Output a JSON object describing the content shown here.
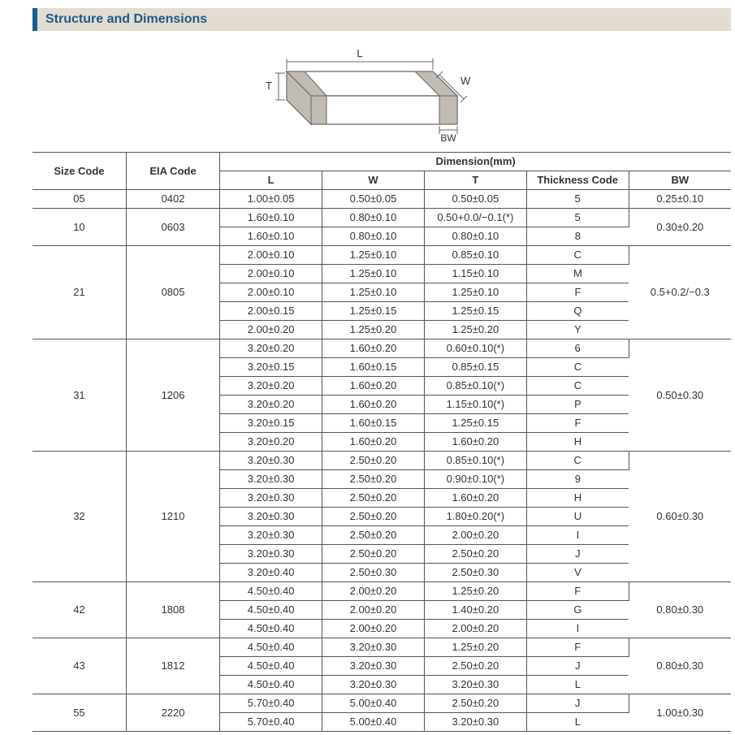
{
  "banner": {
    "title": "Structure and Dimensions"
  },
  "colors": {
    "banner_bg": "#e2dcd1",
    "accent": "#1e5a8f",
    "border": "#555555",
    "text": "#333333",
    "diagram_face": "#ffffff",
    "diagram_edge": "#686663",
    "bw_fill": "#c1bcb3"
  },
  "diagram_labels": {
    "L": "L",
    "W": "W",
    "T": "T",
    "BW": "BW"
  },
  "table": {
    "headers": {
      "size_code": "Size Code",
      "eia_code": "EIA Code",
      "dimension_group": "Dimension(mm)",
      "L": "L",
      "W": "W",
      "T": "T",
      "thickness_code": "Thickness Code",
      "BW": "BW"
    },
    "groups": [
      {
        "size_code": "05",
        "eia_code": "0402",
        "bw": "0.25±0.10",
        "rows": [
          {
            "L": "1.00±0.05",
            "W": "0.50±0.05",
            "T": "0.50±0.05",
            "tc": "5"
          }
        ]
      },
      {
        "size_code": "10",
        "eia_code": "0603",
        "bw": "0.30±0.20",
        "rows": [
          {
            "L": "1.60±0.10",
            "W": "0.80±0.10",
            "T": "0.50+0.0/−0.1(*)",
            "tc": "5"
          },
          {
            "L": "1.60±0.10",
            "W": "0.80±0.10",
            "T": "0.80±0.10",
            "tc": "8"
          }
        ]
      },
      {
        "size_code": "21",
        "eia_code": "0805",
        "bw": "0.5+0.2/−0.3",
        "rows": [
          {
            "L": "2.00±0.10",
            "W": "1.25±0.10",
            "T": "0.85±0.10",
            "tc": "C"
          },
          {
            "L": "2.00±0.10",
            "W": "1.25±0.10",
            "T": "1.15±0.10",
            "tc": "M"
          },
          {
            "L": "2.00±0.10",
            "W": "1.25±0.10",
            "T": "1.25±0.10",
            "tc": "F"
          },
          {
            "L": "2.00±0.15",
            "W": "1.25±0.15",
            "T": "1.25±0.15",
            "tc": "Q"
          },
          {
            "L": "2.00±0.20",
            "W": "1.25±0.20",
            "T": "1.25±0.20",
            "tc": "Y"
          }
        ]
      },
      {
        "size_code": "31",
        "eia_code": "1206",
        "bw": "0.50±0.30",
        "rows": [
          {
            "L": "3.20±0.20",
            "W": "1.60±0.20",
            "T": "0.60±0.10(*)",
            "tc": "6"
          },
          {
            "L": "3.20±0.15",
            "W": "1.60±0.15",
            "T": "0.85±0.15",
            "tc": "C"
          },
          {
            "L": "3.20±0.20",
            "W": "1.60±0.20",
            "T": "0.85±0.10(*)",
            "tc": "C"
          },
          {
            "L": "3.20±0.20",
            "W": "1.60±0.20",
            "T": "1.15±0.10(*)",
            "tc": "P"
          },
          {
            "L": "3.20±0.15",
            "W": "1.60±0.15",
            "T": "1.25±0.15",
            "tc": "F"
          },
          {
            "L": "3.20±0.20",
            "W": "1.60±0.20",
            "T": "1.60±0.20",
            "tc": "H"
          }
        ]
      },
      {
        "size_code": "32",
        "eia_code": "1210",
        "bw": "0.60±0.30",
        "rows": [
          {
            "L": "3.20±0.30",
            "W": "2.50±0.20",
            "T": "0.85±0.10(*)",
            "tc": "C"
          },
          {
            "L": "3.20±0.30",
            "W": "2.50±0.20",
            "T": "0.90±0.10(*)",
            "tc": "9"
          },
          {
            "L": "3.20±0.30",
            "W": "2.50±0.20",
            "T": "1.60±0.20",
            "tc": "H"
          },
          {
            "L": "3.20±0.30",
            "W": "2.50±0.20",
            "T": "1.80±0.20(*)",
            "tc": "U"
          },
          {
            "L": "3.20±0.30",
            "W": "2.50±0.20",
            "T": "2.00±0.20",
            "tc": "I"
          },
          {
            "L": "3.20±0.30",
            "W": "2.50±0.20",
            "T": "2.50±0.20",
            "tc": "J"
          },
          {
            "L": "3.20±0.40",
            "W": "2.50±0.30",
            "T": "2.50±0.30",
            "tc": "V"
          }
        ]
      },
      {
        "size_code": "42",
        "eia_code": "1808",
        "bw": "0.80±0.30",
        "rows": [
          {
            "L": "4.50±0.40",
            "W": "2.00±0.20",
            "T": "1.25±0.20",
            "tc": "F"
          },
          {
            "L": "4.50±0.40",
            "W": "2.00±0.20",
            "T": "1.40±0.20",
            "tc": "G"
          },
          {
            "L": "4.50±0.40",
            "W": "2.00±0.20",
            "T": "2.00±0.20",
            "tc": "I"
          }
        ]
      },
      {
        "size_code": "43",
        "eia_code": "1812",
        "bw": "0.80±0.30",
        "rows": [
          {
            "L": "4.50±0.40",
            "W": "3.20±0.30",
            "T": "1.25±0.20",
            "tc": "F"
          },
          {
            "L": "4.50±0.40",
            "W": "3.20±0.30",
            "T": "2.50±0.20",
            "tc": "J"
          },
          {
            "L": "4.50±0.40",
            "W": "3.20±0.30",
            "T": "3.20±0.30",
            "tc": "L"
          }
        ]
      },
      {
        "size_code": "55",
        "eia_code": "2220",
        "bw": "1.00±0.30",
        "rows": [
          {
            "L": "5.70±0.40",
            "W": "5.00±0.40",
            "T": "2.50±0.20",
            "tc": "J"
          },
          {
            "L": "5.70±0.40",
            "W": "5.00±0.40",
            "T": "3.20±0.30",
            "tc": "L"
          }
        ]
      }
    ]
  }
}
